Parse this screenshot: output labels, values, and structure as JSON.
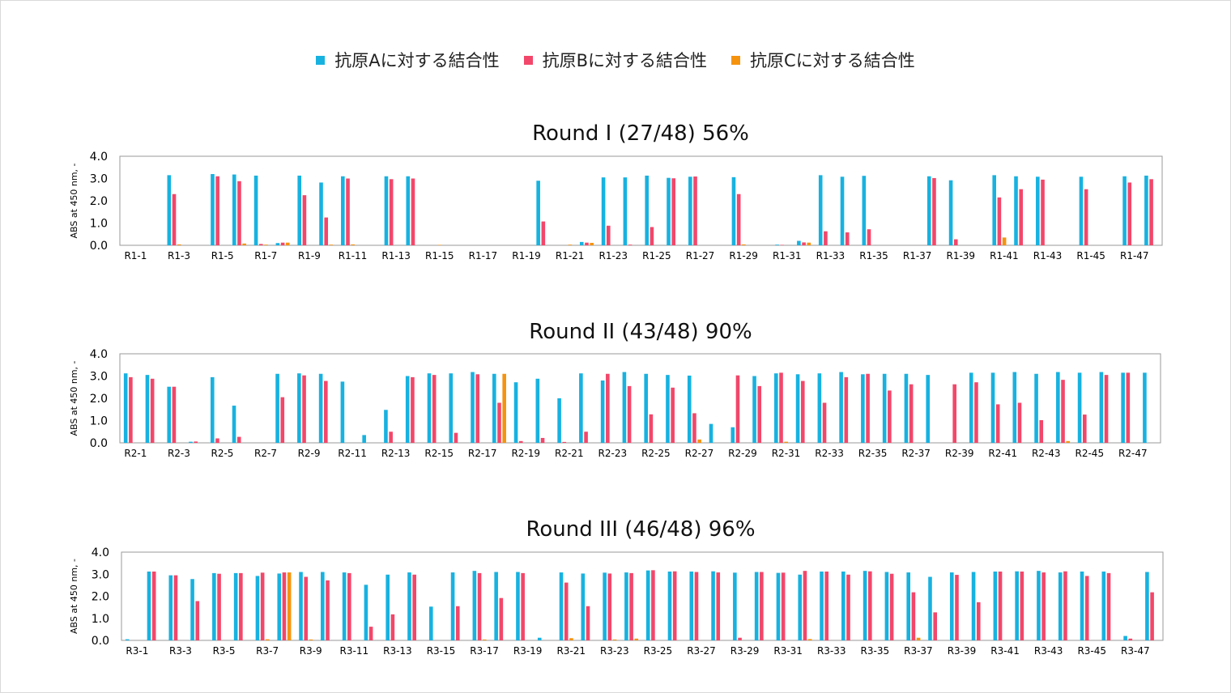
{
  "colors": {
    "A": "#17b2e0",
    "B": "#f2476a",
    "C": "#f5930f"
  },
  "legend": [
    {
      "label": "抗原Aに対する結合性",
      "color": "#17b2e0"
    },
    {
      "label": "抗原Bに対する結合性",
      "color": "#f2476a"
    },
    {
      "label": "抗原Cに対する結合性",
      "color": "#f5930f"
    }
  ],
  "chart_data": [
    {
      "type": "bar",
      "title": "Round I (27/48)  56%",
      "ylabel": "ABS at 450 nm, -",
      "ylim": [
        0,
        4
      ],
      "yticks": [
        "0.0",
        "1.0",
        "2.0",
        "3.0",
        "4.0"
      ],
      "categories": [
        "R1-1",
        "R1-2",
        "R1-3",
        "R1-4",
        "R1-5",
        "R1-6",
        "R1-7",
        "R1-8",
        "R1-9",
        "R1-10",
        "R1-11",
        "R1-12",
        "R1-13",
        "R1-14",
        "R1-15",
        "R1-16",
        "R1-17",
        "R1-18",
        "R1-19",
        "R1-20",
        "R1-21",
        "R1-22",
        "R1-23",
        "R1-24",
        "R1-25",
        "R1-26",
        "R1-27",
        "R1-28",
        "R1-29",
        "R1-30",
        "R1-31",
        "R1-32",
        "R1-33",
        "R1-34",
        "R1-35",
        "R1-36",
        "R1-37",
        "R1-38",
        "R1-39",
        "R1-40",
        "R1-41",
        "R1-42",
        "R1-43",
        "R1-44",
        "R1-45",
        "R1-46",
        "R1-47",
        "R1-48"
      ],
      "shown_labels": [
        "R1-1",
        "R1-3",
        "R1-5",
        "R1-7",
        "R1-9",
        "R1-11",
        "R1-13",
        "R1-15",
        "R1-17",
        "R1-19",
        "R1-21",
        "R1-23",
        "R1-25",
        "R1-27",
        "R1-29",
        "R1-31",
        "R1-33",
        "R1-35",
        "R1-37",
        "R1-39",
        "R1-41",
        "R1-43",
        "R1-45",
        "R1-47"
      ],
      "series": [
        {
          "name": "抗原Aに対する結合性",
          "values": [
            0,
            0,
            3.15,
            0,
            3.2,
            3.18,
            3.13,
            0.1,
            3.13,
            2.82,
            3.1,
            0,
            3.1,
            3.1,
            0,
            0,
            0,
            0,
            0,
            2.9,
            0,
            0.15,
            3.05,
            3.05,
            3.13,
            3.03,
            3.08,
            0,
            3.06,
            0,
            0.03,
            0.2,
            3.15,
            3.08,
            3.12,
            0,
            0,
            3.1,
            2.92,
            0,
            3.15,
            3.1,
            3.08,
            0,
            3.08,
            0,
            3.1,
            3.13
          ]
        },
        {
          "name": "抗原Bに対する結合性",
          "values": [
            0,
            0,
            2.3,
            0,
            3.1,
            2.88,
            0.06,
            0.12,
            2.25,
            1.25,
            3.0,
            0,
            2.97,
            3.0,
            0,
            0,
            0,
            0,
            0,
            1.07,
            0,
            0.12,
            0.88,
            0.03,
            0.82,
            3.01,
            3.09,
            0,
            2.3,
            0,
            0.02,
            0.13,
            0.63,
            0.58,
            0.72,
            0,
            0,
            3.02,
            0.27,
            0,
            2.15,
            2.52,
            2.95,
            0,
            2.52,
            0,
            2.82,
            2.97
          ]
        },
        {
          "name": "抗原Cに対する結合性",
          "values": [
            0,
            0,
            0.04,
            0,
            0,
            0.08,
            0.03,
            0.12,
            0,
            0.03,
            0.04,
            0,
            0,
            0,
            0.02,
            0,
            0,
            0,
            0,
            0,
            0.03,
            0.11,
            0,
            0,
            0,
            0,
            0,
            0,
            0.04,
            0,
            0,
            0.12,
            0,
            0,
            0,
            0,
            0,
            0,
            0,
            0,
            0.35,
            0,
            0,
            0,
            0,
            0,
            0,
            0
          ]
        }
      ]
    },
    {
      "type": "bar",
      "title": "Round II (43/48)  90%",
      "ylabel": "ABS at 450 nm, -",
      "ylim": [
        0,
        4
      ],
      "yticks": [
        "0.0",
        "1.0",
        "2.0",
        "3.0",
        "4.0"
      ],
      "categories": [
        "R2-1",
        "R2-2",
        "R2-3",
        "R2-4",
        "R2-5",
        "R2-6",
        "R2-7",
        "R2-8",
        "R2-9",
        "R2-10",
        "R2-11",
        "R2-12",
        "R2-13",
        "R2-14",
        "R2-15",
        "R2-16",
        "R2-17",
        "R2-18",
        "R2-19",
        "R2-20",
        "R2-21",
        "R2-22",
        "R2-23",
        "R2-24",
        "R2-25",
        "R2-26",
        "R2-27",
        "R2-28",
        "R2-29",
        "R2-30",
        "R2-31",
        "R2-32",
        "R2-33",
        "R2-34",
        "R2-35",
        "R2-36",
        "R2-37",
        "R2-38",
        "R2-39",
        "R2-40",
        "R2-41",
        "R2-42",
        "R2-43",
        "R2-44",
        "R2-45",
        "R2-46",
        "R2-47",
        "R2-48"
      ],
      "shown_labels": [
        "R2-1",
        "R2-3",
        "R2-5",
        "R2-7",
        "R2-9",
        "R2-11",
        "R2-13",
        "R2-15",
        "R2-17",
        "R2-19",
        "R2-21",
        "R2-23",
        "R2-25",
        "R2-27",
        "R2-29",
        "R2-31",
        "R2-33",
        "R2-35",
        "R2-37",
        "R2-39",
        "R2-41",
        "R2-43",
        "R2-45",
        "R2-47"
      ],
      "series": [
        {
          "name": "抗原Aに対する結合性",
          "values": [
            3.12,
            3.05,
            2.52,
            0.05,
            2.95,
            1.67,
            0,
            3.1,
            3.12,
            3.1,
            2.75,
            0.35,
            1.48,
            3.0,
            3.12,
            3.12,
            3.18,
            3.1,
            2.72,
            2.88,
            2.0,
            3.12,
            2.8,
            3.18,
            3.1,
            3.05,
            3.02,
            0.85,
            0.7,
            3.0,
            3.12,
            3.08,
            3.12,
            3.18,
            3.08,
            3.1,
            3.1,
            3.05,
            0,
            3.15,
            3.15,
            3.18,
            3.1,
            3.18,
            3.15,
            3.18,
            3.15,
            3.15
          ]
        },
        {
          "name": "抗原Bに対する結合性",
          "values": [
            2.95,
            2.88,
            2.52,
            0.06,
            0.2,
            0.27,
            0,
            2.05,
            3.03,
            2.78,
            0,
            0,
            0.5,
            2.95,
            3.05,
            0.45,
            3.08,
            1.8,
            0.08,
            0.22,
            0.04,
            0.5,
            3.1,
            2.55,
            1.28,
            2.48,
            1.33,
            0,
            3.03,
            2.55,
            3.15,
            2.78,
            1.8,
            2.95,
            3.1,
            2.35,
            2.63,
            0,
            2.63,
            2.72,
            1.73,
            1.8,
            1.02,
            2.83,
            1.27,
            3.05,
            3.15,
            0
          ]
        },
        {
          "name": "抗原Cに対する結合性",
          "values": [
            0,
            0,
            0,
            0,
            0,
            0,
            0,
            0,
            0,
            0,
            0,
            0,
            0,
            0,
            0,
            0,
            0,
            3.1,
            0,
            0,
            0,
            0,
            0,
            0,
            0,
            0,
            0.15,
            0,
            0,
            0,
            0.05,
            0,
            0,
            0,
            0,
            0,
            0,
            0,
            0,
            0,
            0,
            0,
            0,
            0.08,
            0,
            0,
            0,
            0
          ]
        }
      ]
    },
    {
      "type": "bar",
      "title": "Round III (46/48) 96%",
      "ylabel": "ABS at 450 nm, -",
      "ylim": [
        0,
        4
      ],
      "yticks": [
        "0.0",
        "1.0",
        "2.0",
        "3.0",
        "4.0"
      ],
      "categories": [
        "R3-1",
        "R3-2",
        "R3-3",
        "R3-4",
        "R3-5",
        "R3-6",
        "R3-7",
        "R3-8",
        "R3-9",
        "R3-10",
        "R3-11",
        "R3-12",
        "R3-13",
        "R3-14",
        "R3-15",
        "R3-16",
        "R3-17",
        "R3-18",
        "R3-19",
        "R3-20",
        "R3-21",
        "R3-22",
        "R3-23",
        "R3-24",
        "R3-25",
        "R3-26",
        "R3-27",
        "R3-28",
        "R3-29",
        "R3-30",
        "R3-31",
        "R3-32",
        "R3-33",
        "R3-34",
        "R3-35",
        "R3-36",
        "R3-37",
        "R3-38",
        "R3-39",
        "R3-40",
        "R3-41",
        "R3-42",
        "R3-43",
        "R3-44",
        "R3-45",
        "R3-46",
        "R3-47",
        "R3-48"
      ],
      "shown_labels": [
        "R3-1",
        "R3-3",
        "R3-5",
        "R3-7",
        "R3-9",
        "R3-11",
        "R3-13",
        "R3-15",
        "R3-17",
        "R3-19",
        "R3-21",
        "R3-23",
        "R3-25",
        "R3-27",
        "R3-29",
        "R3-31",
        "R3-33",
        "R3-35",
        "R3-37",
        "R3-39",
        "R3-41",
        "R3-43",
        "R3-45",
        "R3-47"
      ],
      "series": [
        {
          "name": "抗原Aに対する結合性",
          "values": [
            0.05,
            3.12,
            2.95,
            2.78,
            3.05,
            3.05,
            2.92,
            3.03,
            3.1,
            3.1,
            3.08,
            2.52,
            2.98,
            3.08,
            1.53,
            3.08,
            3.15,
            3.1,
            3.1,
            0.12,
            3.08,
            3.03,
            3.07,
            3.08,
            3.17,
            3.12,
            3.12,
            3.13,
            3.07,
            3.1,
            3.06,
            2.98,
            3.12,
            3.12,
            3.15,
            3.1,
            3.08,
            2.88,
            3.08,
            3.1,
            3.12,
            3.13,
            3.15,
            3.08,
            3.12,
            3.12,
            0.2,
            3.1
          ]
        },
        {
          "name": "抗原Bに対する結合性",
          "values": [
            0,
            3.12,
            2.95,
            1.78,
            3.02,
            3.05,
            3.07,
            3.08,
            2.88,
            2.72,
            3.05,
            0.62,
            1.18,
            2.98,
            0,
            1.55,
            3.05,
            1.92,
            3.05,
            0,
            2.62,
            1.55,
            3.03,
            3.05,
            3.18,
            3.13,
            3.1,
            3.08,
            0.12,
            3.1,
            3.07,
            3.15,
            3.12,
            2.98,
            3.13,
            3.02,
            2.18,
            1.27,
            2.97,
            1.73,
            3.12,
            3.12,
            3.08,
            3.13,
            2.92,
            3.05,
            0.08,
            2.18
          ]
        },
        {
          "name": "抗原Cに対する結合性",
          "values": [
            0,
            0,
            0,
            0,
            0,
            0,
            0.05,
            3.08,
            0.04,
            0,
            0,
            0,
            0,
            0,
            0,
            0,
            0.04,
            0,
            0,
            0,
            0.1,
            0,
            0.04,
            0.08,
            0,
            0,
            0,
            0,
            0,
            0,
            0,
            0.06,
            0,
            0,
            0,
            0,
            0.12,
            0,
            0,
            0,
            0,
            0,
            0,
            0,
            0,
            0,
            0,
            0
          ]
        }
      ]
    }
  ]
}
